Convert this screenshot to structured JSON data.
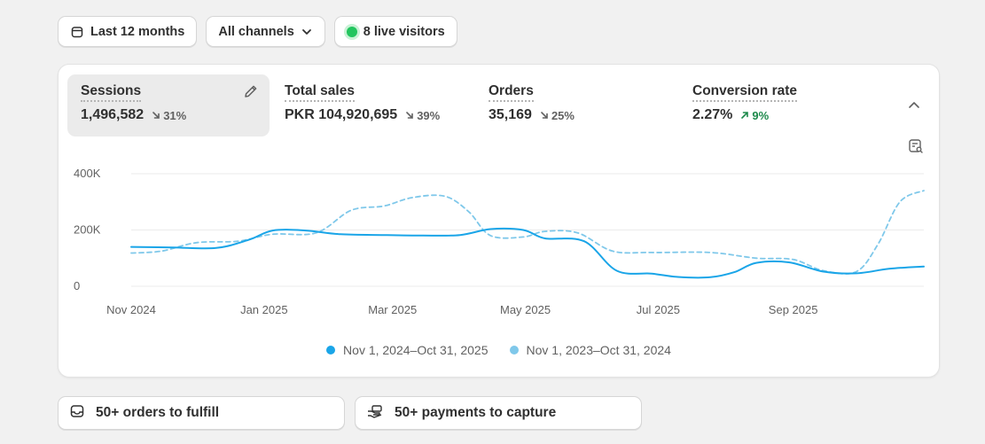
{
  "toolbar": {
    "date_range": "Last 12 months",
    "channel": "All channels",
    "live_visitors": "8 live visitors"
  },
  "metrics": [
    {
      "label": "Sessions",
      "value": "1,496,582",
      "change": "31%",
      "direction": "down"
    },
    {
      "label": "Total sales",
      "value": "PKR 104,920,695",
      "change": "39%",
      "direction": "down"
    },
    {
      "label": "Orders",
      "value": "35,169",
      "change": "25%",
      "direction": "down"
    },
    {
      "label": "Conversion rate",
      "value": "2.27%",
      "change": "9%",
      "direction": "up"
    }
  ],
  "chart_data": {
    "type": "line",
    "y_ticks": [
      "400K",
      "200K",
      "0"
    ],
    "ylim": [
      0,
      400000
    ],
    "x_ticks": [
      "Nov 2024",
      "Jan 2025",
      "Mar 2025",
      "May 2025",
      "Jul 2025",
      "Sep 2025"
    ],
    "x_range": [
      "2024-11-01",
      "2025-10-31"
    ],
    "grid": true,
    "series": [
      {
        "name": "Nov 1, 2024–Oct 31, 2025",
        "color": "#1aa5e8",
        "style": "solid",
        "points": [
          [
            "2024-11-01",
            140000
          ],
          [
            "2024-11-20",
            138000
          ],
          [
            "2024-12-10",
            136000
          ],
          [
            "2024-12-25",
            165000
          ],
          [
            "2025-01-05",
            198000
          ],
          [
            "2025-01-20",
            198000
          ],
          [
            "2025-02-05",
            185000
          ],
          [
            "2025-02-25",
            182000
          ],
          [
            "2025-03-15",
            180000
          ],
          [
            "2025-04-01",
            182000
          ],
          [
            "2025-04-15",
            203000
          ],
          [
            "2025-04-30",
            200000
          ],
          [
            "2025-05-10",
            170000
          ],
          [
            "2025-05-28",
            160000
          ],
          [
            "2025-06-12",
            55000
          ],
          [
            "2025-06-28",
            45000
          ],
          [
            "2025-07-10",
            33000
          ],
          [
            "2025-07-25",
            32000
          ],
          [
            "2025-08-05",
            50000
          ],
          [
            "2025-08-15",
            83000
          ],
          [
            "2025-08-30",
            85000
          ],
          [
            "2025-09-15",
            52000
          ],
          [
            "2025-09-30",
            46000
          ],
          [
            "2025-10-15",
            62000
          ],
          [
            "2025-10-31",
            70000
          ]
        ]
      },
      {
        "name": "Nov 1, 2023–Oct 31, 2024",
        "color": "#7fc8ea",
        "style": "dashed",
        "points": [
          [
            "2024-11-01",
            118000
          ],
          [
            "2024-11-15",
            125000
          ],
          [
            "2024-12-01",
            155000
          ],
          [
            "2024-12-20",
            160000
          ],
          [
            "2025-01-05",
            185000
          ],
          [
            "2025-01-25",
            190000
          ],
          [
            "2025-02-10",
            270000
          ],
          [
            "2025-02-25",
            285000
          ],
          [
            "2025-03-10",
            315000
          ],
          [
            "2025-03-25",
            320000
          ],
          [
            "2025-04-05",
            265000
          ],
          [
            "2025-04-15",
            180000
          ],
          [
            "2025-04-30",
            175000
          ],
          [
            "2025-05-10",
            195000
          ],
          [
            "2025-05-25",
            190000
          ],
          [
            "2025-06-10",
            125000
          ],
          [
            "2025-06-28",
            120000
          ],
          [
            "2025-07-25",
            120000
          ],
          [
            "2025-08-15",
            100000
          ],
          [
            "2025-09-01",
            95000
          ],
          [
            "2025-09-15",
            55000
          ],
          [
            "2025-09-30",
            52000
          ],
          [
            "2025-10-10",
            150000
          ],
          [
            "2025-10-20",
            300000
          ],
          [
            "2025-10-31",
            340000
          ]
        ]
      }
    ]
  },
  "tasks": {
    "orders": "50+ orders to fulfill",
    "payments": "50+ payments to capture"
  },
  "colors": {
    "accent": "#1aa5e8",
    "comparison": "#7fc8ea",
    "positive": "#1e8a4c",
    "live": "#22c55e"
  }
}
